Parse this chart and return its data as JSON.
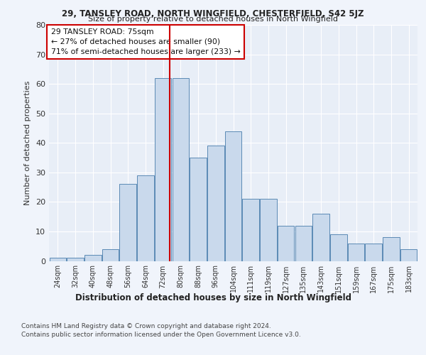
{
  "title1": "29, TANSLEY ROAD, NORTH WINGFIELD, CHESTERFIELD, S42 5JZ",
  "title2": "Size of property relative to detached houses in North Wingfield",
  "xlabel": "Distribution of detached houses by size in North Wingfield",
  "ylabel": "Number of detached properties",
  "footnote1": "Contains HM Land Registry data © Crown copyright and database right 2024.",
  "footnote2": "Contains public sector information licensed under the Open Government Licence v3.0.",
  "annotation_line1": "29 TANSLEY ROAD: 75sqm",
  "annotation_line2": "← 27% of detached houses are smaller (90)",
  "annotation_line3": "71% of semi-detached houses are larger (233) →",
  "property_size": 75,
  "bar_color": "#c9d9ec",
  "bar_edge_color": "#5b8ab5",
  "highlight_line_color": "#cc0000",
  "annotation_box_edge_color": "#cc0000",
  "background_color": "#f0f4fb",
  "plot_bg_color": "#e8eef7",
  "grid_color": "#ffffff",
  "categories": [
    "24sqm",
    "32sqm",
    "40sqm",
    "48sqm",
    "56sqm",
    "64sqm",
    "72sqm",
    "80sqm",
    "88sqm",
    "96sqm",
    "104sqm",
    "111sqm",
    "119sqm",
    "127sqm",
    "135sqm",
    "143sqm",
    "151sqm",
    "159sqm",
    "167sqm",
    "175sqm",
    "183sqm"
  ],
  "values": [
    1,
    1,
    2,
    4,
    26,
    29,
    62,
    62,
    35,
    39,
    44,
    21,
    21,
    12,
    12,
    16,
    9,
    6,
    6,
    8,
    4
  ],
  "ylim": [
    0,
    80
  ],
  "yticks": [
    0,
    10,
    20,
    30,
    40,
    50,
    60,
    70,
    80
  ]
}
